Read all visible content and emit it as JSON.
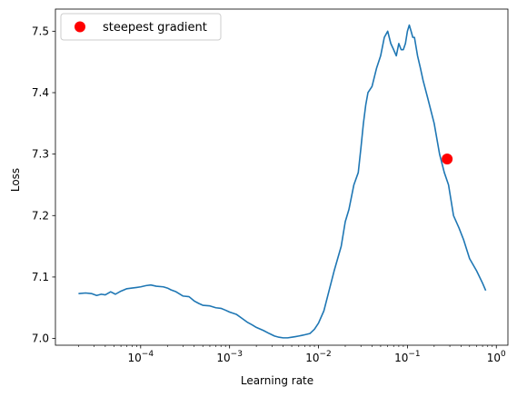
{
  "chart_data": {
    "type": "line",
    "xlabel": "Learning rate",
    "ylabel": "Loss",
    "xscale": "log",
    "xlim": [
      1.1e-05,
      1.35
    ],
    "ylim": [
      6.989,
      7.536
    ],
    "grid": false,
    "legend_placement": "top-left",
    "x_ticks": [
      {
        "value": 0.0001,
        "base": "10",
        "exp": "−4"
      },
      {
        "value": 0.001,
        "base": "10",
        "exp": "−3"
      },
      {
        "value": 0.01,
        "base": "10",
        "exp": "−2"
      },
      {
        "value": 0.1,
        "base": "10",
        "exp": "−1"
      },
      {
        "value": 1,
        "base": "10",
        "exp": "0"
      }
    ],
    "y_ticks": [
      {
        "value": 7.0,
        "label": "7.0"
      },
      {
        "value": 7.1,
        "label": "7.1"
      },
      {
        "value": 7.2,
        "label": "7.2"
      },
      {
        "value": 7.3,
        "label": "7.3"
      },
      {
        "value": 7.4,
        "label": "7.4"
      },
      {
        "value": 7.5,
        "label": "7.5"
      }
    ],
    "series": [
      {
        "name": "",
        "color": "#1f77b4",
        "x": [
          2e-05,
          2.4e-05,
          2.8e-05,
          3.2e-05,
          3.6e-05,
          4e-05,
          4.6e-05,
          5.2e-05,
          6e-05,
          7e-05,
          8e-05,
          9e-05,
          0.0001,
          0.000115,
          0.00013,
          0.00015,
          0.00018,
          0.0002,
          0.00022,
          0.00025,
          0.0003,
          0.00035,
          0.0004,
          0.00045,
          0.0005,
          0.0006,
          0.0007,
          0.0008,
          0.0009,
          0.001,
          0.0012,
          0.0014,
          0.0016,
          0.0018,
          0.002,
          0.0024,
          0.0028,
          0.0032,
          0.0036,
          0.004,
          0.0045,
          0.005,
          0.0055,
          0.006,
          0.0065,
          0.007,
          0.008,
          0.009,
          0.01,
          0.0115,
          0.013,
          0.015,
          0.018,
          0.02,
          0.022,
          0.025,
          0.028,
          0.03,
          0.032,
          0.034,
          0.036,
          0.04,
          0.045,
          0.05,
          0.055,
          0.06,
          0.065,
          0.07,
          0.075,
          0.08,
          0.085,
          0.09,
          0.095,
          0.1,
          0.105,
          0.11,
          0.115,
          0.12,
          0.13,
          0.14,
          0.15,
          0.17,
          0.2,
          0.23,
          0.26,
          0.29,
          0.33,
          0.38,
          0.43,
          0.5,
          0.6,
          0.7,
          0.76
        ],
        "y": [
          7.073,
          7.074,
          7.073,
          7.07,
          7.072,
          7.071,
          7.076,
          7.072,
          7.077,
          7.081,
          7.082,
          7.083,
          7.084,
          7.086,
          7.087,
          7.085,
          7.084,
          7.082,
          7.079,
          7.076,
          7.069,
          7.068,
          7.061,
          7.057,
          7.054,
          7.053,
          7.05,
          7.049,
          7.046,
          7.043,
          7.039,
          7.032,
          7.026,
          7.022,
          7.018,
          7.013,
          7.008,
          7.004,
          7.002,
          7.001,
          7.001,
          7.002,
          7.003,
          7.004,
          7.005,
          7.006,
          7.008,
          7.015,
          7.025,
          7.045,
          7.075,
          7.11,
          7.15,
          7.19,
          7.21,
          7.25,
          7.27,
          7.31,
          7.35,
          7.38,
          7.4,
          7.41,
          7.44,
          7.46,
          7.49,
          7.5,
          7.48,
          7.47,
          7.46,
          7.48,
          7.47,
          7.47,
          7.48,
          7.5,
          7.51,
          7.5,
          7.49,
          7.49,
          7.46,
          7.44,
          7.42,
          7.39,
          7.35,
          7.3,
          7.27,
          7.25,
          7.2,
          7.18,
          7.16,
          7.13,
          7.11,
          7.09,
          7.078
        ]
      }
    ],
    "marker": {
      "label": "steepest gradient",
      "x": 0.28,
      "y": 7.292,
      "color": "#ff0000"
    }
  }
}
